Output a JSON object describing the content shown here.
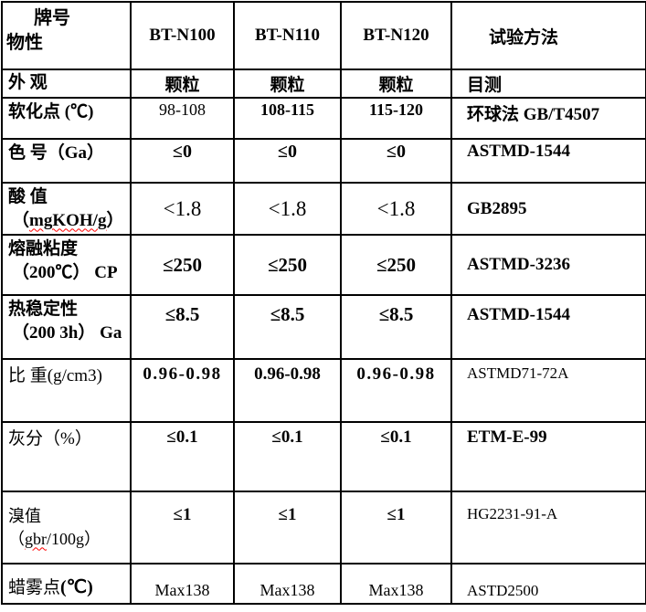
{
  "page": {
    "background": "#ffffff",
    "border_color": "#000000",
    "squiggle_color": "#ff0000"
  },
  "table": {
    "corner": {
      "line1": "牌号",
      "line2": "物性"
    },
    "columns": [
      "BT-N100",
      "BT-N110",
      "BT-N120",
      "试验方法"
    ],
    "rows": [
      {
        "property": "外 观",
        "values": [
          "颗粒",
          "颗粒",
          "颗粒"
        ],
        "method": "目测"
      },
      {
        "property": "软化点 (℃)",
        "values": [
          "98-108",
          "108-115",
          "115-120"
        ],
        "method": "环球法 GB/T4507"
      },
      {
        "property": "色 号（Ga）",
        "values": [
          "≤0",
          "≤0",
          "≤0"
        ],
        "method": "ASTMD-1544"
      },
      {
        "property": "酸 值",
        "line2_pre": "（",
        "line2_wavy": "mgKOH/g",
        "line2_post": "）",
        "values": [
          "<1.8",
          "<1.8",
          "<1.8"
        ],
        "method": "GB2895"
      },
      {
        "property": "熔融粘度",
        "line2": "（200℃） CP",
        "values": [
          "≤250",
          "≤250",
          "≤250"
        ],
        "method": "ASTMD-3236"
      },
      {
        "property": "热稳定性",
        "line2": "（200 3h） Ga",
        "values": [
          "≤8.5",
          "≤8.5",
          "≤8.5"
        ],
        "method": "ASTMD-1544"
      },
      {
        "property": "比 重(g/cm3)",
        "values": [
          "0.96-0.98",
          "0.96-0.98",
          "0.96-0.98"
        ],
        "method": "ASTMD71-72A"
      },
      {
        "property": "灰分（%）",
        "values": [
          "≤0.1",
          "≤0.1",
          "≤0.1"
        ],
        "method": "ETM-E-99"
      },
      {
        "property_pre": "溴值（",
        "property_wavy": "gbr",
        "property_post": "/100g）",
        "values": [
          "≤1",
          "≤1",
          "≤1"
        ],
        "method": "HG2231-91-A"
      },
      {
        "property": "蜡雾点",
        "property_suffix": "(℃)",
        "values": [
          "Max138",
          "Max138",
          "Max138"
        ],
        "method": "ASTD2500"
      }
    ]
  }
}
